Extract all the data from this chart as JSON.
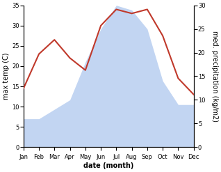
{
  "months": [
    "Jan",
    "Feb",
    "Mar",
    "Apr",
    "May",
    "Jun",
    "Jul",
    "Aug",
    "Sep",
    "Oct",
    "Nov",
    "Dec"
  ],
  "temperature": [
    14.5,
    23.0,
    26.5,
    22.0,
    19.0,
    30.0,
    34.0,
    33.0,
    34.0,
    27.5,
    17.0,
    13.0
  ],
  "precipitation": [
    6.0,
    6.0,
    8.0,
    10.0,
    18.0,
    25.0,
    30.0,
    29.0,
    25.0,
    14.0,
    9.0,
    9.0
  ],
  "temp_color": "#c0392b",
  "precip_color": "#b8cef0",
  "temp_ylim": [
    0,
    35
  ],
  "precip_ylim": [
    0,
    30
  ],
  "temp_yticks": [
    0,
    5,
    10,
    15,
    20,
    25,
    30,
    35
  ],
  "precip_yticks": [
    0,
    5,
    10,
    15,
    20,
    25,
    30
  ],
  "xlabel": "date (month)",
  "ylabel_left": "max temp (C)",
  "ylabel_right": "med. precipitation (kg/m2)",
  "background_color": "#ffffff",
  "temp_linewidth": 1.5,
  "xlabel_fontsize": 7,
  "ylabel_fontsize": 7,
  "tick_fontsize": 6,
  "xlabel_fontweight": "bold"
}
